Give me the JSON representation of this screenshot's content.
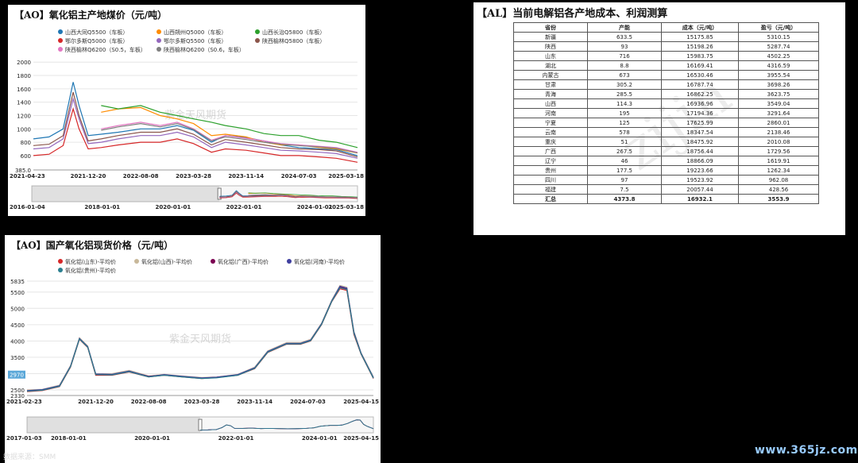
{
  "chart_data": [
    {
      "type": "line",
      "title": "【AO】氧化铝主产地煤价（元/吨）",
      "legend_position": "top-left",
      "ylim": [
        385,
        2050
      ],
      "y_ticks": [
        385,
        600,
        800,
        1000,
        1200,
        1400,
        1600,
        1800,
        2000
      ],
      "y_tick_labels": [
        "385.0",
        "600",
        "800",
        "1000",
        "1200",
        "1400",
        "1600",
        "1800",
        "2000"
      ],
      "x_start": "2021-04-23",
      "x_end": "2025-03-18",
      "x_ticks": [
        "2021-04-23",
        "2021-12-20",
        "2022-08-08",
        "2023-03-28",
        "2023-11-14",
        "2024-07-03",
        "2025-03-18"
      ],
      "navigator": {
        "start": "2016-01-04",
        "end": "2025-03-18",
        "ticks": [
          "2016-01-04",
          "2018-01-01",
          "2020-01-01",
          "2022-01-01",
          "2024-01-01",
          "2025-03-18"
        ]
      },
      "watermark": "紫金天风期货",
      "x": [
        "2021-04-23",
        "2021-07-01",
        "2021-09-01",
        "2021-10-15",
        "2021-11-10",
        "2021-12-20",
        "2022-02-15",
        "2022-05-01",
        "2022-08-08",
        "2022-11-01",
        "2023-01-15",
        "2023-03-28",
        "2023-06-15",
        "2023-08-15",
        "2023-11-14",
        "2024-02-01",
        "2024-04-15",
        "2024-07-03",
        "2024-10-01",
        "2024-12-15",
        "2025-03-18"
      ],
      "series": [
        {
          "name": "山西大同Q5500（车板）",
          "color": "#1f77b4",
          "values": [
            850,
            880,
            1000,
            1700,
            1350,
            900,
            920,
            950,
            1000,
            1000,
            1050,
            980,
            800,
            900,
            870,
            820,
            760,
            720,
            700,
            690,
            600
          ]
        },
        {
          "name": "山西朔州Q5000（车板）",
          "color": "#ff8c00",
          "values": [
            null,
            null,
            null,
            null,
            null,
            null,
            1250,
            1300,
            1320,
            1200,
            1150,
            1080,
            900,
            920,
            880,
            800,
            760,
            760,
            720,
            700,
            640
          ]
        },
        {
          "name": "山西长治Q5800（车板）",
          "color": "#2ca02c",
          "values": [
            null,
            null,
            null,
            null,
            null,
            null,
            1350,
            1300,
            1350,
            1250,
            1200,
            1150,
            1100,
            1050,
            1000,
            930,
            900,
            900,
            830,
            800,
            720
          ]
        },
        {
          "name": "鄂尔多斯Q5000（车板）",
          "color": "#d62728",
          "values": [
            600,
            620,
            750,
            1300,
            1000,
            700,
            720,
            760,
            800,
            800,
            850,
            780,
            650,
            700,
            680,
            640,
            600,
            600,
            580,
            560,
            500
          ]
        },
        {
          "name": "鄂尔多斯Q5500（车板）",
          "color": "#9467bd",
          "values": [
            700,
            720,
            850,
            1450,
            1150,
            780,
            800,
            850,
            900,
            900,
            950,
            880,
            720,
            800,
            760,
            720,
            680,
            670,
            650,
            630,
            560
          ]
        },
        {
          "name": "陕西榆林Q5800（车板）",
          "color": "#8c564b",
          "values": [
            750,
            770,
            900,
            1550,
            1200,
            820,
            850,
            900,
            950,
            950,
            1000,
            920,
            760,
            840,
            800,
            760,
            720,
            700,
            690,
            670,
            580
          ]
        },
        {
          "name": "陕西榆林Q6200（S0.5，车板）",
          "color": "#e377c2",
          "values": [
            null,
            null,
            null,
            null,
            null,
            null,
            1000,
            1050,
            1100,
            1050,
            1100,
            1000,
            830,
            900,
            860,
            820,
            780,
            760,
            740,
            720,
            650
          ]
        },
        {
          "name": "陕西榆林Q6200（S0.6，车板）",
          "color": "#7f7f7f",
          "values": [
            null,
            null,
            null,
            null,
            null,
            null,
            980,
            1030,
            1080,
            1030,
            1080,
            990,
            820,
            880,
            840,
            800,
            770,
            750,
            730,
            710,
            640
          ]
        }
      ]
    },
    {
      "type": "line",
      "title": "【AO】国产氧化铝现货价格（元/吨）",
      "legend_position": "top",
      "ylim": [
        2330,
        5835
      ],
      "y_ticks": [
        2330,
        2500,
        3000,
        3500,
        4000,
        4500,
        5000,
        5500,
        5835
      ],
      "y_tick_labels": [
        "2330",
        "2500",
        "3000",
        "3500",
        "4000",
        "4500",
        "5000",
        "5500",
        "5835"
      ],
      "highlight_value": "2970",
      "x_start": "2021-02-23",
      "x_end": "2025-04-15",
      "x_ticks": [
        "2021-02-23",
        "2021-12-20",
        "2022-08-08",
        "2023-03-28",
        "2023-11-14",
        "2024-07-03",
        "2025-04-15"
      ],
      "navigator": {
        "start": "2017-01-03",
        "end": "2025-04-15",
        "ticks": [
          "2017-01-03",
          "2018-01-01",
          "2020-01-01",
          "2022-01-01",
          "2024-01-01",
          "2025-04-15"
        ]
      },
      "watermark": "紫金天风期货",
      "source": "数据来源：SMM",
      "x": [
        "2021-02-23",
        "2021-05-01",
        "2021-07-15",
        "2021-09-01",
        "2021-10-10",
        "2021-11-15",
        "2021-12-20",
        "2022-03-01",
        "2022-05-15",
        "2022-08-08",
        "2022-10-15",
        "2023-01-01",
        "2023-03-28",
        "2023-06-01",
        "2023-09-01",
        "2023-11-14",
        "2024-01-10",
        "2024-04-01",
        "2024-06-01",
        "2024-07-15",
        "2024-09-01",
        "2024-10-15",
        "2024-11-20",
        "2024-12-20",
        "2025-01-20",
        "2025-02-20",
        "2025-04-15"
      ],
      "series": [
        {
          "name": "氧化铝(山东)-平均价",
          "color": "#d62728",
          "values": [
            2450,
            2480,
            2600,
            3200,
            4050,
            3800,
            2950,
            2950,
            3050,
            2900,
            2950,
            2900,
            2850,
            2880,
            2950,
            3150,
            3650,
            3900,
            3900,
            4000,
            4500,
            5200,
            5600,
            5550,
            4200,
            3600,
            2850
          ]
        },
        {
          "name": "氧化铝(山西)-平均价",
          "color": "#c8b89a",
          "values": [
            2500,
            2520,
            2650,
            3250,
            4100,
            3850,
            3000,
            3000,
            3100,
            2930,
            2980,
            2930,
            2880,
            2900,
            2980,
            3200,
            3700,
            3950,
            3950,
            4050,
            4550,
            5250,
            5700,
            5650,
            4300,
            3650,
            2900
          ]
        },
        {
          "name": "氧化铝(广西)-平均价",
          "color": "#7b0051",
          "values": [
            2470,
            2500,
            2620,
            3220,
            4070,
            3820,
            2980,
            2970,
            3070,
            2920,
            2960,
            2910,
            2860,
            2890,
            2960,
            3170,
            3670,
            3920,
            3920,
            4020,
            4520,
            5220,
            5650,
            5600,
            4250,
            3620,
            2870
          ]
        },
        {
          "name": "氧化铝(河南)-平均价",
          "color": "#3f3f9f",
          "values": [
            2480,
            2510,
            2630,
            3230,
            4080,
            3830,
            2990,
            2980,
            3080,
            2910,
            2970,
            2920,
            2870,
            2890,
            2970,
            3180,
            3680,
            3930,
            3930,
            4030,
            4530,
            5230,
            5680,
            5620,
            4270,
            3630,
            2880
          ]
        },
        {
          "name": "氧化铝(贵州)-平均价",
          "color": "#2a7f8f",
          "values": [
            2460,
            2490,
            2610,
            3210,
            4060,
            3810,
            2970,
            2960,
            3060,
            2900,
            2950,
            2900,
            2850,
            2870,
            2950,
            3160,
            3660,
            3910,
            3910,
            4010,
            4510,
            5210,
            5630,
            5580,
            4230,
            3610,
            2860
          ]
        }
      ]
    },
    {
      "type": "table",
      "title": "【AL】当前电解铝各产地成本、利润测算",
      "watermark": "zijin",
      "columns": [
        "省份",
        "产能",
        "成本（元/吨）",
        "盈亏（元/吨）"
      ],
      "rows": [
        [
          "新疆",
          "633.5",
          "15175.85",
          "5310.15"
        ],
        [
          "陕西",
          "93",
          "15198.26",
          "5287.74"
        ],
        [
          "山东",
          "716",
          "15983.75",
          "4502.25"
        ],
        [
          "湖北",
          "8.8",
          "16169.41",
          "4316.59"
        ],
        [
          "内蒙古",
          "673",
          "16530.46",
          "3955.54"
        ],
        [
          "甘肃",
          "305.2",
          "16787.74",
          "3698.26"
        ],
        [
          "青海",
          "285.5",
          "16862.25",
          "3623.75"
        ],
        [
          "山西",
          "114.3",
          "16936.96",
          "3549.04"
        ],
        [
          "河南",
          "195",
          "17194.36",
          "3291.64"
        ],
        [
          "宁夏",
          "125",
          "17625.99",
          "2860.01"
        ],
        [
          "云南",
          "578",
          "18347.54",
          "2138.46"
        ],
        [
          "重庆",
          "51",
          "18475.92",
          "2010.08"
        ],
        [
          "广西",
          "267.5",
          "18756.44",
          "1729.56"
        ],
        [
          "辽宁",
          "46",
          "18866.09",
          "1619.91"
        ],
        [
          "贵州",
          "177.5",
          "19223.66",
          "1262.34"
        ],
        [
          "四川",
          "97",
          "19523.92",
          "962.08"
        ],
        [
          "福建",
          "7.5",
          "20057.44",
          "428.56"
        ]
      ],
      "total": [
        "汇总",
        "4373.8",
        "16932.1",
        "3553.9"
      ]
    }
  ],
  "site_watermark": "www.365jz.com"
}
